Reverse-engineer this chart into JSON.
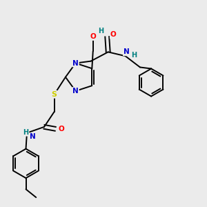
{
  "bg_color": "#ebebeb",
  "colors": {
    "N": "#0000cc",
    "O": "#ff0000",
    "S": "#cccc00",
    "H": "#008080",
    "bond": "#000000"
  },
  "bond_lw": 1.4,
  "font_size": 7.5
}
